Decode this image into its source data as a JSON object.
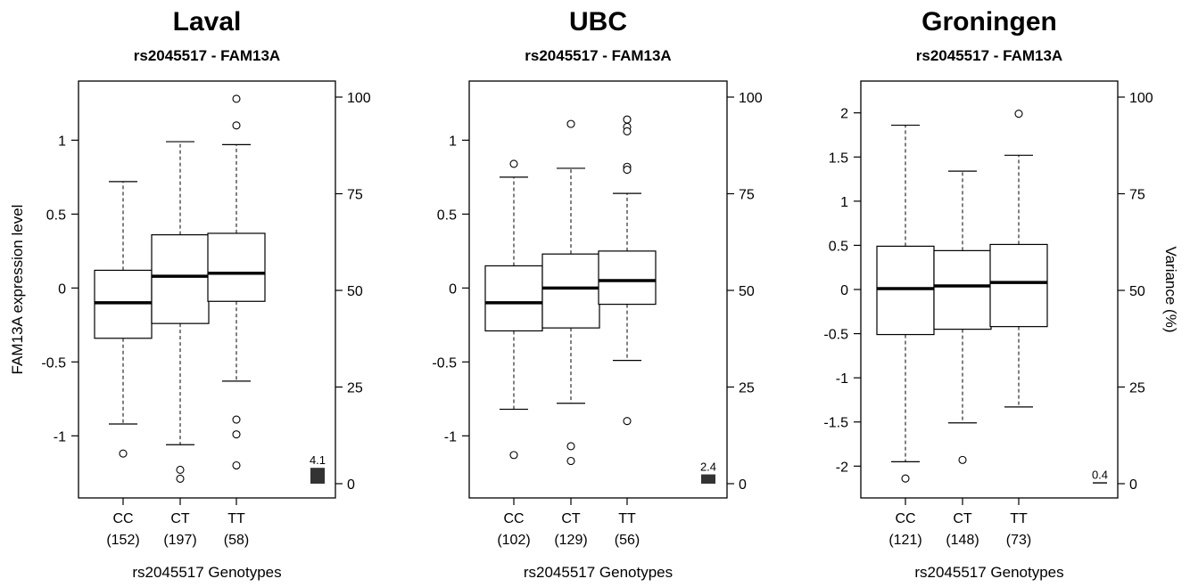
{
  "figure": {
    "ylabel_left": "FAM13A expression level",
    "ylabel_right": "Variance (%)",
    "xlabel": "rs2045517 Genotypes",
    "right_axis_ticks": [
      "0",
      "25",
      "50",
      "75",
      "100"
    ]
  },
  "chart_data": [
    {
      "type": "box",
      "title": "Laval",
      "subtitle": "rs2045517 -  FAM13A",
      "xlabel": "rs2045517 Genotypes",
      "ylabel": "FAM13A expression level",
      "ylim": [
        -1.42,
        1.4
      ],
      "y_ticks": [
        -1,
        -0.5,
        0,
        0.5,
        1
      ],
      "y_tick_labels": [
        "-1",
        "-0.5",
        "0",
        "0.5",
        "1"
      ],
      "right_ylim": [
        0,
        100
      ],
      "right_ticks": [
        0,
        25,
        50,
        75,
        100
      ],
      "categories": [
        "CC",
        "CT",
        "TT"
      ],
      "counts": [
        "(152)",
        "(197)",
        "(58)"
      ],
      "boxes": [
        {
          "whisker_low": -0.92,
          "q1": -0.34,
          "median": -0.1,
          "q3": 0.12,
          "whisker_high": 0.72,
          "outliers": [
            -1.12
          ]
        },
        {
          "whisker_low": -1.06,
          "q1": -0.24,
          "median": 0.08,
          "q3": 0.36,
          "whisker_high": 0.99,
          "outliers": [
            -1.23,
            -1.29
          ]
        },
        {
          "whisker_low": -0.63,
          "q1": -0.09,
          "median": 0.1,
          "q3": 0.37,
          "whisker_high": 0.97,
          "outliers": [
            1.28,
            1.1,
            -0.89,
            -0.99,
            -1.2
          ]
        }
      ],
      "variance_pct": 4.1,
      "variance_label": "4.1"
    },
    {
      "type": "box",
      "title": "UBC",
      "subtitle": "rs2045517 -  FAM13A",
      "xlabel": "rs2045517 Genotypes",
      "ylabel": "",
      "ylim": [
        -1.42,
        1.4
      ],
      "y_ticks": [
        -1,
        -0.5,
        0,
        0.5,
        1
      ],
      "y_tick_labels": [
        "-1",
        "-0.5",
        "0",
        "0.5",
        "1"
      ],
      "right_ylim": [
        0,
        100
      ],
      "right_ticks": [
        0,
        25,
        50,
        75,
        100
      ],
      "categories": [
        "CC",
        "CT",
        "TT"
      ],
      "counts": [
        "(102)",
        "(129)",
        "(56)"
      ],
      "boxes": [
        {
          "whisker_low": -0.82,
          "q1": -0.29,
          "median": -0.1,
          "q3": 0.15,
          "whisker_high": 0.75,
          "outliers": [
            0.84,
            -1.13
          ]
        },
        {
          "whisker_low": -0.78,
          "q1": -0.27,
          "median": 0.0,
          "q3": 0.23,
          "whisker_high": 0.81,
          "outliers": [
            1.11,
            -1.07,
            -1.17
          ]
        },
        {
          "whisker_low": -0.49,
          "q1": -0.11,
          "median": 0.05,
          "q3": 0.25,
          "whisker_high": 0.64,
          "outliers": [
            1.14,
            1.09,
            1.06,
            0.82,
            0.8,
            -0.9
          ]
        }
      ],
      "variance_pct": 2.4,
      "variance_label": "2.4"
    },
    {
      "type": "box",
      "title": "Groningen",
      "subtitle": "rs2045517 -  FAM13A",
      "xlabel": "rs2045517 Genotypes",
      "ylabel": "Variance (%)",
      "ylim": [
        -2.36,
        2.36
      ],
      "y_ticks": [
        -2,
        -1.5,
        -1,
        -0.5,
        0,
        0.5,
        1,
        1.5,
        2
      ],
      "y_tick_labels": [
        "-2",
        "-1.5",
        "-1",
        "-0.5",
        "0",
        "0.5",
        "1",
        "1.5",
        "2"
      ],
      "right_ylim": [
        0,
        100
      ],
      "right_ticks": [
        0,
        25,
        50,
        75,
        100
      ],
      "categories": [
        "CC",
        "CT",
        "TT"
      ],
      "counts": [
        "(121)",
        "(148)",
        "(73)"
      ],
      "boxes": [
        {
          "whisker_low": -1.95,
          "q1": -0.51,
          "median": 0.01,
          "q3": 0.49,
          "whisker_high": 1.86,
          "outliers": [
            -2.14
          ]
        },
        {
          "whisker_low": -1.51,
          "q1": -0.45,
          "median": 0.04,
          "q3": 0.44,
          "whisker_high": 1.34,
          "outliers": [
            -1.93
          ]
        },
        {
          "whisker_low": -1.33,
          "q1": -0.42,
          "median": 0.08,
          "q3": 0.51,
          "whisker_high": 1.52,
          "outliers": [
            1.99
          ]
        }
      ],
      "variance_pct": 0.4,
      "variance_label": "0.4"
    }
  ]
}
